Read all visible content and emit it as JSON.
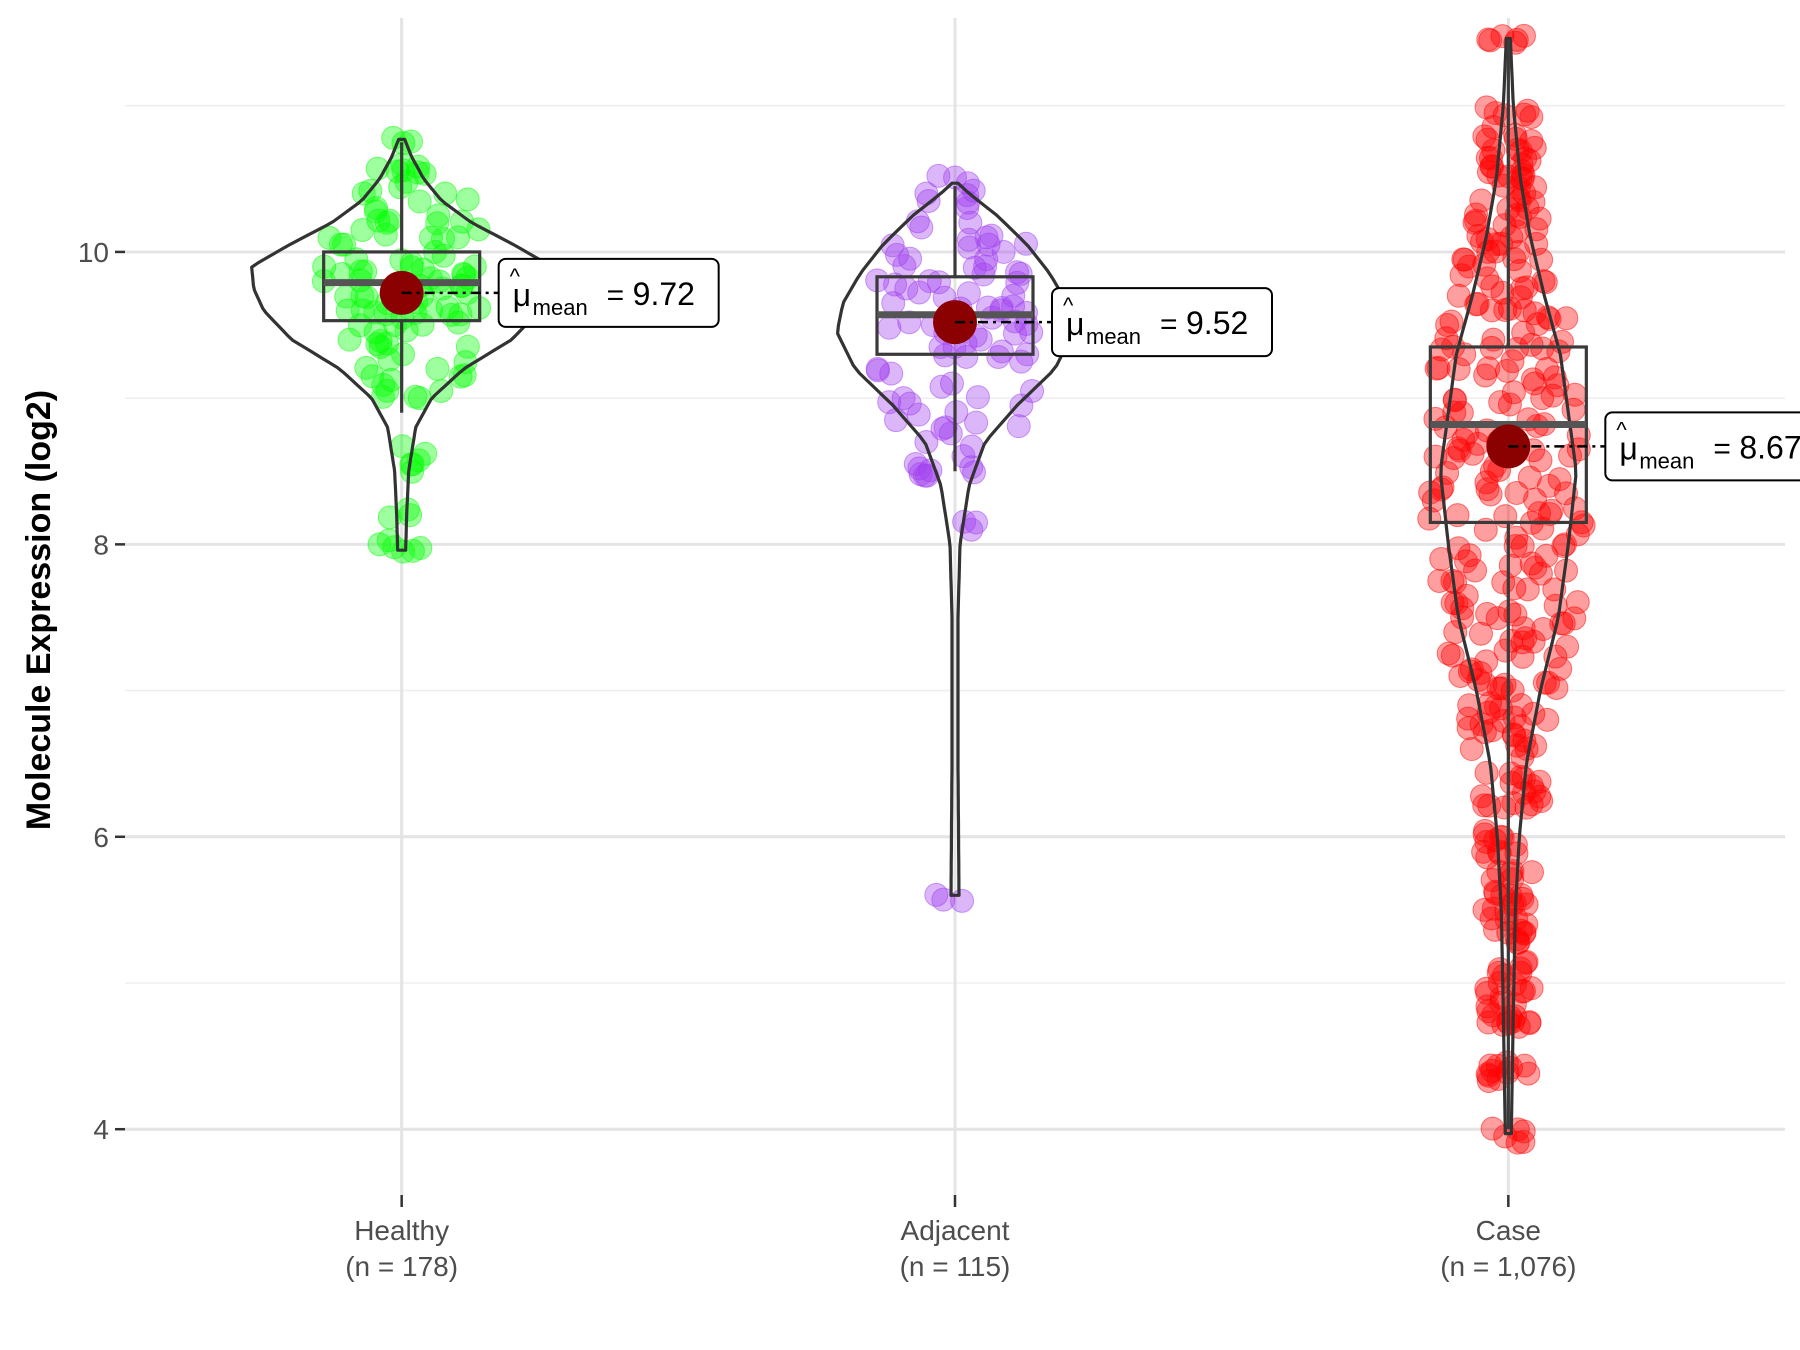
{
  "chart_data": {
    "type": "violin",
    "title": "",
    "xlabel": "",
    "ylabel": "Molecule Expression (log2)",
    "ylim": [
      3.55,
      11.6
    ],
    "yticks": [
      4,
      6,
      8,
      10
    ],
    "ytick_labels": [
      "4",
      "6",
      "8",
      "10"
    ],
    "grid": true,
    "mean_label_prefix": "μ",
    "mean_label_subscript": "mean",
    "groups": [
      {
        "name": "Healthy",
        "n_label": "(n = 178)",
        "n": 178,
        "color": "#00ff00",
        "mean": 9.72,
        "mean_label": "9.72",
        "box": {
          "q1": 9.53,
          "median": 9.79,
          "q3": 10.0,
          "whisker_low": 8.9,
          "whisker_high": 10.75
        },
        "violin": {
          "min": 7.96,
          "max": 10.77,
          "profile": [
            [
              7.96,
              4
            ],
            [
              8.2,
              5
            ],
            [
              8.5,
              7
            ],
            [
              8.8,
              14
            ],
            [
              9.0,
              30
            ],
            [
              9.2,
              62
            ],
            [
              9.4,
              110
            ],
            [
              9.6,
              138
            ],
            [
              9.75,
              148
            ],
            [
              9.9,
              150
            ],
            [
              10.05,
              112
            ],
            [
              10.2,
              70
            ],
            [
              10.35,
              40
            ],
            [
              10.5,
              22
            ],
            [
              10.65,
              10
            ],
            [
              10.77,
              3
            ]
          ]
        },
        "points": [
          8.0,
          7.95,
          8.2,
          8.55,
          8.62,
          9.0,
          9.05,
          9.15,
          9.2,
          9.3,
          9.35,
          9.4,
          9.45,
          9.5,
          9.55,
          9.6,
          9.62,
          9.65,
          9.7,
          9.72,
          9.75,
          9.8,
          9.82,
          9.85,
          9.88,
          9.9,
          9.95,
          10.0,
          10.05,
          10.1,
          10.15,
          10.2,
          10.25,
          10.3,
          10.4,
          10.48,
          10.55,
          10.6,
          10.78
        ]
      },
      {
        "name": "Adjacent",
        "n_label": "(n = 115)",
        "n": 115,
        "color": "#a040f0",
        "mean": 9.52,
        "mean_label": "9.52",
        "box": {
          "q1": 9.3,
          "median": 9.57,
          "q3": 9.83,
          "whisker_low": 8.5,
          "whisker_high": 10.45
        },
        "violin": {
          "min": 5.6,
          "max": 10.47,
          "profile": [
            [
              5.6,
              4
            ],
            [
              6.5,
              3
            ],
            [
              7.5,
              3
            ],
            [
              8.0,
              5
            ],
            [
              8.4,
              14
            ],
            [
              8.7,
              30
            ],
            [
              8.95,
              62
            ],
            [
              9.2,
              100
            ],
            [
              9.45,
              118
            ],
            [
              9.65,
              112
            ],
            [
              9.85,
              95
            ],
            [
              10.05,
              72
            ],
            [
              10.25,
              42
            ],
            [
              10.4,
              14
            ],
            [
              10.47,
              3
            ]
          ]
        },
        "points": [
          5.57,
          8.1,
          8.48,
          8.52,
          8.55,
          8.7,
          8.8,
          8.85,
          8.95,
          9.0,
          9.1,
          9.2,
          9.25,
          9.3,
          9.35,
          9.4,
          9.45,
          9.5,
          9.55,
          9.6,
          9.62,
          9.7,
          9.75,
          9.8,
          9.85,
          9.9,
          9.95,
          10.0,
          10.05,
          10.1,
          10.2,
          10.3,
          10.4,
          10.47
        ]
      },
      {
        "name": "Case",
        "n_label": "(n = 1,076)",
        "n": 1076,
        "color": "#ff0000",
        "mean": 8.67,
        "mean_label": "8.67",
        "box": {
          "q1": 8.15,
          "median": 8.82,
          "q3": 9.35,
          "whisker_low": 4.0,
          "whisker_high": 11.45
        },
        "violin": {
          "min": 3.97,
          "max": 11.46,
          "profile": [
            [
              3.97,
              3
            ],
            [
              4.8,
              5
            ],
            [
              5.5,
              7
            ],
            [
              6.0,
              11
            ],
            [
              6.5,
              18
            ],
            [
              7.0,
              32
            ],
            [
              7.5,
              50
            ],
            [
              8.0,
              60
            ],
            [
              8.5,
              68
            ],
            [
              8.9,
              60
            ],
            [
              9.3,
              52
            ],
            [
              9.7,
              36
            ],
            [
              10.1,
              22
            ],
            [
              10.5,
              12
            ],
            [
              11.0,
              5
            ],
            [
              11.46,
              2
            ]
          ]
        },
        "points": [
          3.95,
          4.38,
          4.42,
          4.7,
          4.78,
          4.9,
          5.0,
          5.1,
          5.3,
          5.4,
          5.5,
          5.6,
          5.75,
          5.9,
          6.0,
          6.2,
          6.3,
          6.4,
          6.6,
          6.7,
          6.8,
          6.9,
          7.0,
          7.1,
          7.2,
          7.3,
          7.4,
          7.5,
          7.6,
          7.7,
          7.8,
          7.9,
          8.0,
          8.1,
          8.2,
          8.3,
          8.4,
          8.5,
          8.6,
          8.7,
          8.8,
          8.9,
          9.0,
          9.1,
          9.2,
          9.3,
          9.4,
          9.5,
          9.6,
          9.7,
          9.8,
          9.9,
          10.0,
          10.1,
          10.2,
          10.3,
          10.4,
          10.5,
          10.6,
          10.7,
          10.8,
          10.95,
          11.45
        ]
      }
    ]
  }
}
